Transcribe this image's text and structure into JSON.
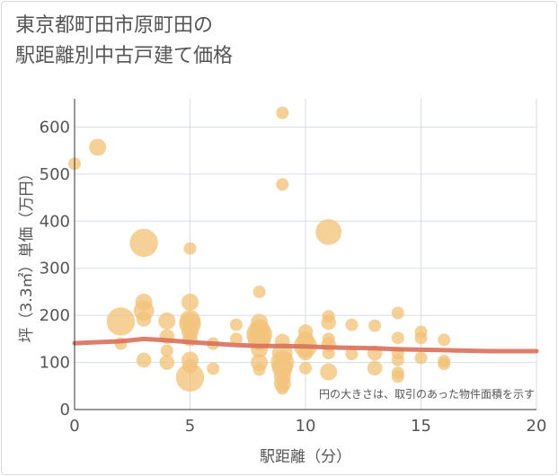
{
  "title_line1": "東京都町田市原町田の",
  "title_line2": "駅距離別中古戸建て価格",
  "chart_data": {
    "type": "scatter",
    "title": "東京都町田市原町田の駅距離別中古戸建て価格",
    "xlabel": "駅距離（分）",
    "ylabel": "坪（3.3㎡）単価（万円）",
    "xlim": [
      0,
      20
    ],
    "ylim": [
      0,
      660
    ],
    "xticks": [
      0,
      5,
      10,
      15,
      20
    ],
    "yticks": [
      0,
      100,
      200,
      300,
      400,
      500,
      600
    ],
    "grid": true,
    "note": "円の大きさは、取引のあった物件面積を示す",
    "colors": {
      "bubble": "#f2c37a",
      "trend": "#d9705a",
      "grid": "#d6dde6",
      "text": "#555555"
    },
    "points": [
      {
        "x": 0,
        "y": 522,
        "size": 1
      },
      {
        "x": 1,
        "y": 557,
        "size": 2
      },
      {
        "x": 2,
        "y": 187,
        "size": 6
      },
      {
        "x": 2,
        "y": 140,
        "size": 1
      },
      {
        "x": 3,
        "y": 354,
        "size": 6
      },
      {
        "x": 3,
        "y": 228,
        "size": 2
      },
      {
        "x": 3,
        "y": 210,
        "size": 3
      },
      {
        "x": 3,
        "y": 192,
        "size": 1.5
      },
      {
        "x": 3,
        "y": 105,
        "size": 1.5
      },
      {
        "x": 4,
        "y": 188,
        "size": 2
      },
      {
        "x": 4,
        "y": 155,
        "size": 1.5
      },
      {
        "x": 4,
        "y": 125,
        "size": 1
      },
      {
        "x": 4,
        "y": 100,
        "size": 1.5
      },
      {
        "x": 5,
        "y": 342,
        "size": 1
      },
      {
        "x": 5,
        "y": 228,
        "size": 2
      },
      {
        "x": 5,
        "y": 190,
        "size": 3
      },
      {
        "x": 5,
        "y": 182,
        "size": 3.5
      },
      {
        "x": 5,
        "y": 165,
        "size": 2
      },
      {
        "x": 5,
        "y": 150,
        "size": 1.5
      },
      {
        "x": 5,
        "y": 105,
        "size": 2
      },
      {
        "x": 5,
        "y": 92,
        "size": 1.5
      },
      {
        "x": 5,
        "y": 68,
        "size": 6
      },
      {
        "x": 6,
        "y": 140,
        "size": 1
      },
      {
        "x": 6,
        "y": 87,
        "size": 1
      },
      {
        "x": 7,
        "y": 180,
        "size": 1
      },
      {
        "x": 7,
        "y": 150,
        "size": 1
      },
      {
        "x": 8,
        "y": 250,
        "size": 1
      },
      {
        "x": 8,
        "y": 185,
        "size": 2
      },
      {
        "x": 8,
        "y": 170,
        "size": 3
      },
      {
        "x": 8,
        "y": 160,
        "size": 5
      },
      {
        "x": 8,
        "y": 150,
        "size": 4
      },
      {
        "x": 8,
        "y": 128,
        "size": 2
      },
      {
        "x": 8,
        "y": 100,
        "size": 2
      },
      {
        "x": 8,
        "y": 85,
        "size": 1
      },
      {
        "x": 9,
        "y": 630,
        "size": 1
      },
      {
        "x": 9,
        "y": 478,
        "size": 1
      },
      {
        "x": 9,
        "y": 145,
        "size": 1.5
      },
      {
        "x": 9,
        "y": 120,
        "size": 3
      },
      {
        "x": 9,
        "y": 100,
        "size": 4
      },
      {
        "x": 9,
        "y": 88,
        "size": 3
      },
      {
        "x": 9,
        "y": 70,
        "size": 2
      },
      {
        "x": 9,
        "y": 55,
        "size": 2
      },
      {
        "x": 9,
        "y": 45,
        "size": 1
      },
      {
        "x": 10,
        "y": 165,
        "size": 1.5
      },
      {
        "x": 10,
        "y": 148,
        "size": 2
      },
      {
        "x": 10,
        "y": 135,
        "size": 4
      },
      {
        "x": 10,
        "y": 120,
        "size": 1.5
      },
      {
        "x": 10,
        "y": 88,
        "size": 1
      },
      {
        "x": 11,
        "y": 377,
        "size": 5
      },
      {
        "x": 11,
        "y": 198,
        "size": 1
      },
      {
        "x": 11,
        "y": 185,
        "size": 1.5
      },
      {
        "x": 11,
        "y": 150,
        "size": 1
      },
      {
        "x": 11,
        "y": 138,
        "size": 1.5
      },
      {
        "x": 11,
        "y": 120,
        "size": 1
      },
      {
        "x": 11,
        "y": 80,
        "size": 2
      },
      {
        "x": 12,
        "y": 180,
        "size": 1
      },
      {
        "x": 12,
        "y": 118,
        "size": 1
      },
      {
        "x": 13,
        "y": 178,
        "size": 1
      },
      {
        "x": 13,
        "y": 120,
        "size": 1.5
      },
      {
        "x": 13,
        "y": 88,
        "size": 1.5
      },
      {
        "x": 14,
        "y": 205,
        "size": 1
      },
      {
        "x": 14,
        "y": 152,
        "size": 1
      },
      {
        "x": 14,
        "y": 120,
        "size": 1
      },
      {
        "x": 14,
        "y": 105,
        "size": 1
      },
      {
        "x": 14,
        "y": 78,
        "size": 1
      },
      {
        "x": 14,
        "y": 70,
        "size": 1
      },
      {
        "x": 15,
        "y": 165,
        "size": 1
      },
      {
        "x": 15,
        "y": 152,
        "size": 1
      },
      {
        "x": 15,
        "y": 110,
        "size": 1
      },
      {
        "x": 16,
        "y": 148,
        "size": 1
      },
      {
        "x": 16,
        "y": 103,
        "size": 1
      },
      {
        "x": 16,
        "y": 97,
        "size": 1
      }
    ],
    "trend": {
      "x": [
        0,
        1,
        2,
        3,
        4,
        5,
        6,
        7,
        8,
        9,
        10,
        11,
        12,
        13,
        14,
        15,
        16,
        17,
        18,
        19,
        20
      ],
      "y": [
        141,
        143,
        145,
        150,
        147,
        143,
        140,
        137,
        135,
        135,
        134,
        132,
        131,
        130,
        128,
        127,
        126,
        125,
        124,
        124,
        124
      ]
    }
  }
}
